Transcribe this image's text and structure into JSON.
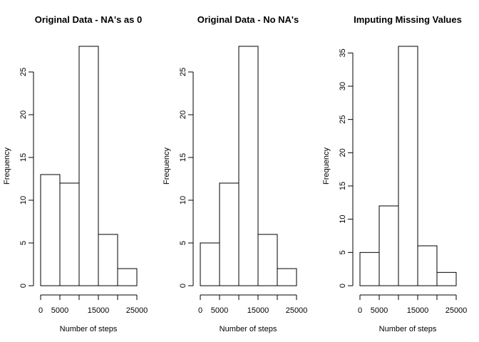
{
  "chart_data": [
    {
      "type": "bar",
      "title": "Original Data - NA's as 0",
      "xlabel": "Number of steps",
      "ylabel": "Frequency",
      "bins": [
        [
          0,
          5000
        ],
        [
          5000,
          10000
        ],
        [
          10000,
          15000
        ],
        [
          15000,
          20000
        ],
        [
          20000,
          25000
        ]
      ],
      "values": [
        13,
        12,
        28,
        6,
        2
      ],
      "xlim": [
        0,
        25000
      ],
      "ylim": [
        0,
        28
      ],
      "xticks": [
        0,
        5000,
        15000,
        25000
      ],
      "xtick_labels": [
        "0",
        "5000",
        "15000",
        "25000"
      ],
      "yticks": [
        0,
        5,
        10,
        15,
        20,
        25
      ],
      "ytick_labels": [
        "0",
        "5",
        "10",
        "15",
        "20",
        "25"
      ],
      "grid": false,
      "bar_fill": "#ffffff",
      "bar_stroke": "#000000"
    },
    {
      "type": "bar",
      "title": "Original Data - No NA's",
      "xlabel": "Number of steps",
      "ylabel": "Frequency",
      "bins": [
        [
          0,
          5000
        ],
        [
          5000,
          10000
        ],
        [
          10000,
          15000
        ],
        [
          15000,
          20000
        ],
        [
          20000,
          25000
        ]
      ],
      "values": [
        5,
        12,
        28,
        6,
        2
      ],
      "xlim": [
        0,
        25000
      ],
      "ylim": [
        0,
        28
      ],
      "xticks": [
        0,
        5000,
        15000,
        25000
      ],
      "xtick_labels": [
        "0",
        "5000",
        "15000",
        "25000"
      ],
      "yticks": [
        0,
        5,
        10,
        15,
        20,
        25
      ],
      "ytick_labels": [
        "0",
        "5",
        "10",
        "15",
        "20",
        "25"
      ],
      "grid": false,
      "bar_fill": "#ffffff",
      "bar_stroke": "#000000"
    },
    {
      "type": "bar",
      "title": "Imputing Missing Values",
      "xlabel": "Number of steps",
      "ylabel": "Frequency",
      "bins": [
        [
          0,
          5000
        ],
        [
          5000,
          10000
        ],
        [
          10000,
          15000
        ],
        [
          15000,
          20000
        ],
        [
          20000,
          25000
        ]
      ],
      "values": [
        5,
        12,
        36,
        6,
        2
      ],
      "xlim": [
        0,
        25000
      ],
      "ylim": [
        0,
        36
      ],
      "xticks": [
        0,
        5000,
        15000,
        25000
      ],
      "xtick_labels": [
        "0",
        "5000",
        "15000",
        "25000"
      ],
      "yticks": [
        0,
        5,
        10,
        15,
        20,
        25,
        30,
        35
      ],
      "ytick_labels": [
        "0",
        "5",
        "10",
        "15",
        "20",
        "25",
        "30",
        "35"
      ],
      "grid": false,
      "bar_fill": "#ffffff",
      "bar_stroke": "#000000"
    }
  ]
}
